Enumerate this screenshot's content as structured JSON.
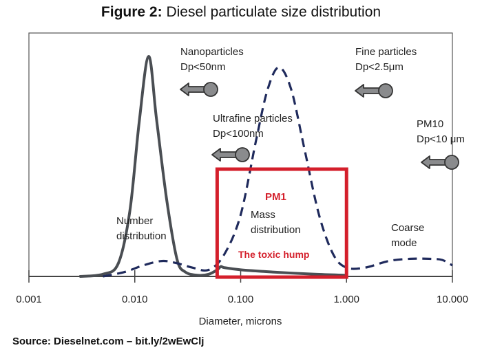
{
  "title": {
    "prefix": "Figure 2:",
    "text": "Diesel particulate size distribution"
  },
  "source": "Source: Dieselnet.com – bit.ly/2wEwClj",
  "colors": {
    "number_curve": "#4a4e53",
    "mass_curve": "#1f2a5c",
    "highlight": "#d41f2b",
    "arrow_fill": "#8a8b8d",
    "arrow_stroke": "#333333",
    "frame": "#555555"
  },
  "chart_data": {
    "type": "line",
    "xlabel": "Diameter, microns",
    "xscale": "log",
    "xlim": [
      0.001,
      10.0
    ],
    "xticks": [
      "0.001",
      "0.010",
      "0.100",
      "1.000",
      "10.000"
    ],
    "xtick_values": [
      0.001,
      0.01,
      0.1,
      1.0,
      10.0
    ],
    "ylim": [
      0,
      1
    ],
    "grid": false,
    "series": [
      {
        "name": "Number distribution",
        "style": "solid",
        "x": [
          0.003,
          0.005,
          0.007,
          0.009,
          0.011,
          0.0135,
          0.016,
          0.02,
          0.025,
          0.03,
          0.04,
          0.05,
          0.06,
          0.065,
          0.07,
          0.1,
          0.2,
          0.5,
          1.0
        ],
        "y": [
          0.0,
          0.01,
          0.06,
          0.3,
          0.7,
          1.0,
          0.72,
          0.35,
          0.08,
          0.02,
          0.005,
          0.01,
          0.03,
          0.045,
          0.04,
          0.03,
          0.02,
          0.01,
          0.005
        ]
      },
      {
        "name": "Mass distribution",
        "style": "dashed",
        "x": [
          0.005,
          0.008,
          0.012,
          0.018,
          0.025,
          0.035,
          0.05,
          0.07,
          0.1,
          0.14,
          0.18,
          0.23,
          0.3,
          0.4,
          0.55,
          0.75,
          1.0,
          1.5,
          2.5,
          4.0,
          6.0,
          8.0,
          10.0
        ],
        "y": [
          0.0,
          0.02,
          0.05,
          0.07,
          0.06,
          0.04,
          0.03,
          0.1,
          0.28,
          0.62,
          0.85,
          0.95,
          0.85,
          0.58,
          0.28,
          0.1,
          0.04,
          0.04,
          0.07,
          0.08,
          0.08,
          0.075,
          0.05
        ]
      }
    ],
    "highlight_region": {
      "label": "The toxic hump",
      "sublabel": "PM1",
      "x_range": [
        0.06,
        1.0
      ]
    },
    "annotations": {
      "nanoparticles": [
        "Nanoparticles",
        "Dp<50nm"
      ],
      "fine": [
        "Fine particles",
        "Dp<2.5μm"
      ],
      "ultrafine": [
        "Ultrafine particles",
        "Dp<100nm"
      ],
      "pm10": [
        "PM10",
        "Dp<10 μm"
      ],
      "number": [
        "Number",
        "distribution"
      ],
      "mass": [
        "Mass",
        "distribution"
      ],
      "coarse": [
        "Coarse",
        "mode"
      ]
    }
  }
}
